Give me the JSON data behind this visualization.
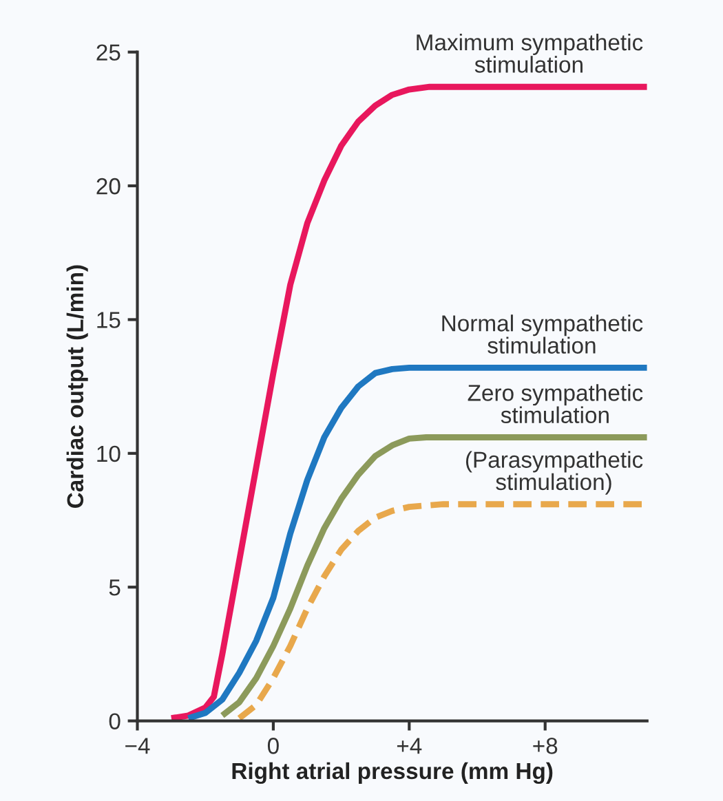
{
  "chart_data": {
    "type": "line",
    "xlabel": "Right atrial pressure (mm Hg)",
    "ylabel": "Cardiac output (L/min)",
    "xlim": [
      -4,
      11
    ],
    "xticks": [
      {
        "value": -4,
        "label": "−4"
      },
      0,
      {
        "value": 4,
        "label": "+4"
      },
      {
        "value": 8,
        "label": "+8"
      }
    ],
    "ylim": [
      0,
      25
    ],
    "yticks": [
      0,
      5,
      10,
      15,
      20,
      25
    ],
    "grid": false,
    "marker": "none",
    "series": [
      {
        "name": "Maximum sympathetic\nstimulation",
        "color": "#e8175d",
        "line_style": "solid",
        "x": [
          -3,
          -2.5,
          -2,
          -1.75,
          -1.5,
          -1,
          -0.5,
          0,
          0.5,
          1,
          1.5,
          2,
          2.5,
          3,
          3.5,
          4,
          4.6,
          11
        ],
        "values": [
          0.1,
          0.2,
          0.5,
          0.9,
          2.5,
          6,
          9.5,
          13,
          16.3,
          18.6,
          20.2,
          21.5,
          22.4,
          23,
          23.4,
          23.6,
          23.7,
          23.7
        ]
      },
      {
        "name": "Normal sympathetic\nstimulation",
        "color": "#1f78c1",
        "line_style": "solid",
        "x": [
          -2.5,
          -2,
          -1.5,
          -1,
          -0.5,
          0,
          0.5,
          1,
          1.5,
          2,
          2.5,
          3,
          3.5,
          4,
          11
        ],
        "values": [
          0.1,
          0.3,
          0.8,
          1.8,
          3,
          4.6,
          7,
          9,
          10.6,
          11.7,
          12.5,
          13,
          13.15,
          13.2,
          13.2
        ]
      },
      {
        "name": "Zero sympathetic\nstimulation",
        "color": "#8c9a5b",
        "line_style": "solid",
        "x": [
          -1.5,
          -1,
          -0.5,
          0,
          0.5,
          1,
          1.5,
          2,
          2.5,
          3,
          3.5,
          4,
          4.5,
          11
        ],
        "values": [
          0.2,
          0.7,
          1.6,
          2.8,
          4.2,
          5.8,
          7.2,
          8.3,
          9.2,
          9.9,
          10.3,
          10.55,
          10.6,
          10.6
        ]
      },
      {
        "name": "(Parasympathetic\nstimulation)",
        "color": "#e8a84c",
        "line_style": "dashed",
        "x": [
          -1,
          -0.5,
          0,
          0.5,
          1,
          1.5,
          2,
          2.5,
          3,
          3.5,
          4,
          5,
          11
        ],
        "values": [
          0.1,
          0.6,
          1.6,
          2.8,
          4.2,
          5.4,
          6.4,
          7.1,
          7.6,
          7.85,
          8,
          8.1,
          8.1
        ]
      }
    ]
  }
}
